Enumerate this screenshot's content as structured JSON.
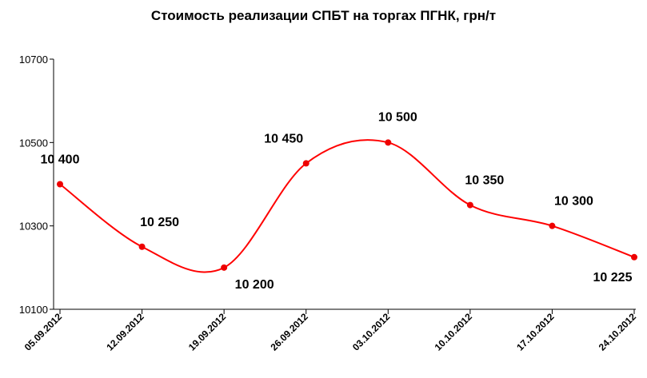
{
  "chart_data": {
    "type": "line",
    "title": "Стоимость реализации СПБТ на торгах ПГНК, грн/т",
    "xlabel": "",
    "ylabel": "",
    "ylim": [
      10100,
      10700
    ],
    "yticks": [
      10100,
      10300,
      10500,
      10700
    ],
    "ytick_labels": [
      "10100",
      "10300",
      "10500",
      "10700"
    ],
    "categories": [
      "05.09.2012",
      "12.09.2012",
      "19.09.2012",
      "26.09.2012",
      "03.10.2012",
      "10.10.2012",
      "17.10.2012",
      "24.10.2012"
    ],
    "series": [
      {
        "values": [
          10400,
          10250,
          10200,
          10450,
          10500,
          10350,
          10300,
          10225
        ],
        "data_labels": [
          "10 400",
          "10 250",
          "10 200",
          "10 450",
          "10 500",
          "10 350",
          "10 300",
          "10 225"
        ],
        "color": "#ff0000",
        "marker_color": "#ee0000",
        "smooth": true
      }
    ],
    "grid": false,
    "legend": "none"
  }
}
